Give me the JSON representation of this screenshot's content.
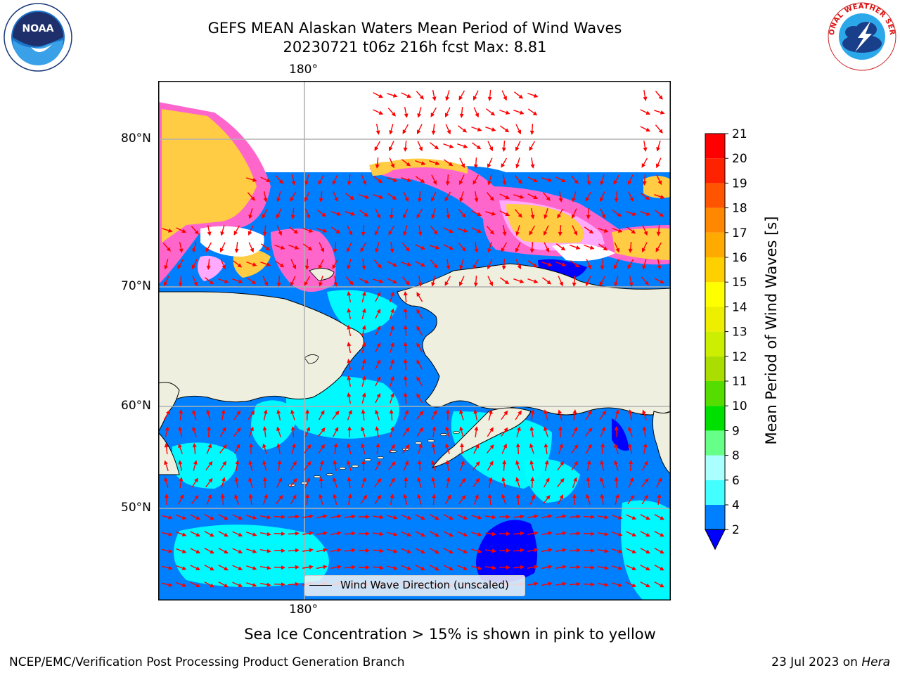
{
  "title": {
    "line1": "GEFS MEAN Alaskan Waters Mean Period of Wind Waves",
    "line2": "20230721 t06z 216h fcst   Max: 8.81"
  },
  "map": {
    "lon_label_top": "180°",
    "lon_label_bottom": "180°",
    "lat_labels": [
      "80°N",
      "70°N",
      "60°N",
      "50°N"
    ],
    "colors": {
      "land": "#efefdf",
      "ocean_2_4": "#0080ff",
      "ocean_4_6": "#00ffff",
      "ocean_below_2": "#0000ff",
      "ice_low": "#ff66cc",
      "ice_mid": "#ffaaff",
      "ice_high": "#ffcc44",
      "arrow": "#ff0000",
      "grid": "#b0b0b0"
    }
  },
  "legend": {
    "label": "Wind Wave Direction (unscaled)"
  },
  "colorbar": {
    "label": "Mean Period of Wind Waves [s]",
    "ticks": [
      "2",
      "4",
      "6",
      "8",
      "9",
      "10",
      "11",
      "12",
      "13",
      "14",
      "15",
      "16",
      "17",
      "18",
      "19",
      "20",
      "21"
    ],
    "colors": [
      "#0080ff",
      "#00ffff",
      "#44ffff",
      "#aaffff",
      "#66ff88",
      "#00e000",
      "#55dd00",
      "#aadd00",
      "#ccee00",
      "#eeee00",
      "#ffff00",
      "#ffd000",
      "#ffaa00",
      "#ff8800",
      "#ff5500",
      "#ff2200",
      "#ff0000"
    ],
    "under_color": "#0000ff"
  },
  "note": "Sea Ice Concentration > 15% is shown in pink to yellow",
  "footer": {
    "left": "NCEP/EMC/Verification Post Processing Product Generation Branch",
    "right_date": "23 Jul 2023 on ",
    "right_host": "Hera"
  },
  "logos": {
    "noaa_text": "NOAA",
    "nws_text": "NATIONAL WEATHER SERVICE"
  }
}
